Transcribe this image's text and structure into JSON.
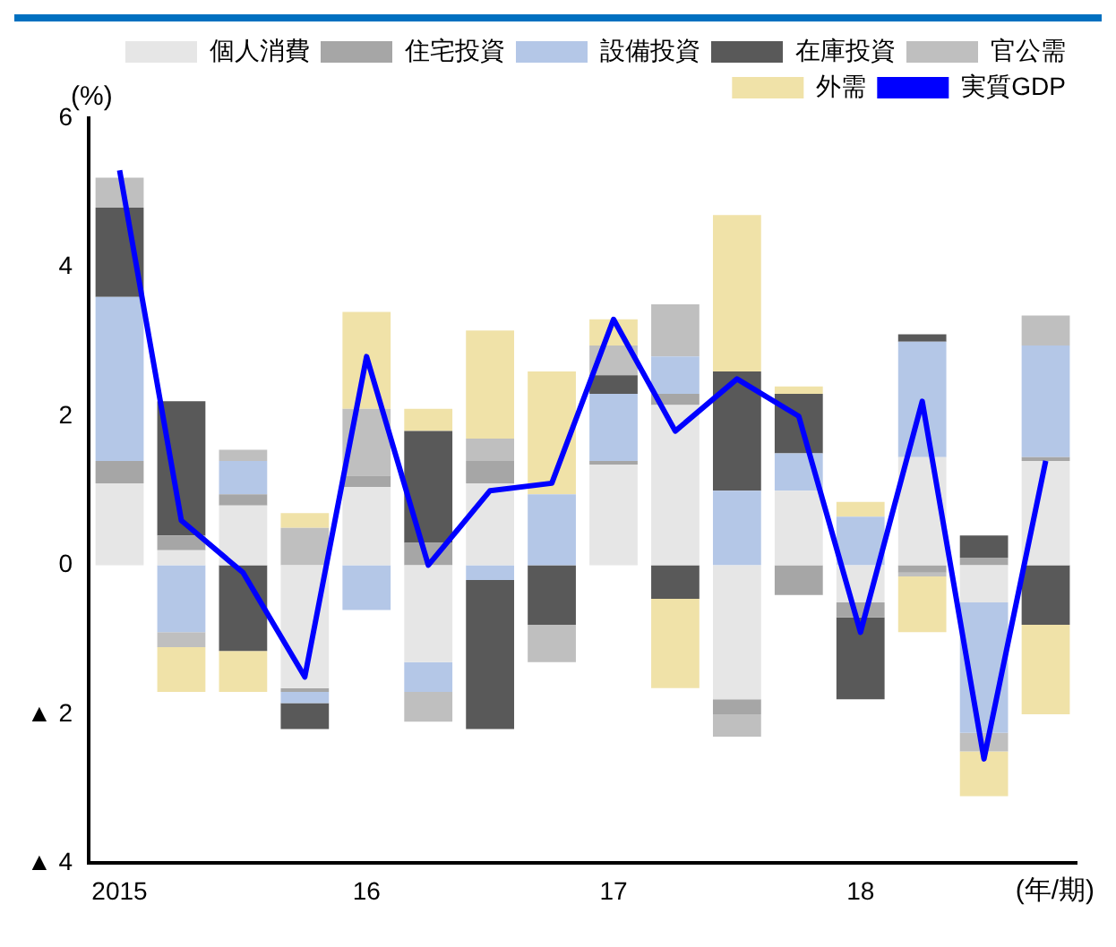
{
  "chart_data": {
    "type": "bar",
    "stacked": true,
    "ylabel": "(%)",
    "xlabel": "(年/期)",
    "categories": [
      "2015",
      null,
      null,
      null,
      "16",
      null,
      null,
      null,
      "17",
      null,
      null,
      null,
      "18",
      null,
      null,
      null
    ],
    "ylim": [
      -4,
      6
    ],
    "yticks": [
      {
        "value": -4,
        "label": "▲ 4"
      },
      {
        "value": -2,
        "label": "▲ 2"
      },
      0,
      2,
      4,
      6
    ],
    "legend": "top right",
    "marker": "none",
    "series": [
      {
        "name": "個人消費",
        "color": "#e6e6e6",
        "values": [
          1.1,
          0.2,
          0.8,
          -1.65,
          1.05,
          -1.3,
          1.1,
          0,
          1.35,
          2.15,
          -1.8,
          1.0,
          -0.5,
          1.45,
          -0.5,
          1.4
        ]
      },
      {
        "name": "住宅投資",
        "color": "#a6a6a6",
        "values": [
          0.3,
          0.2,
          0.15,
          -0.05,
          0.15,
          0.3,
          0.3,
          0,
          0.05,
          0.15,
          -0.2,
          -0.4,
          -0.2,
          -0.1,
          0.1,
          0.05
        ]
      },
      {
        "name": "設備投資",
        "color": "#b4c7e7",
        "values": [
          2.2,
          -0.9,
          0.45,
          -0.15,
          -0.6,
          -0.4,
          -0.2,
          0.95,
          0.9,
          0.5,
          1.0,
          0.5,
          0.65,
          1.55,
          -1.75,
          1.5
        ]
      },
      {
        "name": "在庫投資",
        "color": "#595959",
        "values": [
          1.2,
          1.8,
          -1.15,
          -0.35,
          0,
          1.5,
          -2.0,
          -0.8,
          0.25,
          -0.45,
          1.6,
          0.8,
          -1.1,
          0.1,
          0.3,
          -0.8
        ]
      },
      {
        "name": "官公需",
        "color": "#bfbfbf",
        "values": [
          0.4,
          -0.2,
          0.15,
          0.5,
          0.9,
          -0.4,
          0.3,
          -0.5,
          0.4,
          0.7,
          -0.3,
          0,
          0,
          -0.05,
          -0.25,
          0.4
        ]
      },
      {
        "name": "外需",
        "color": "#f0e2a8",
        "values": [
          0,
          -0.6,
          -0.55,
          0.2,
          1.3,
          0.3,
          1.45,
          1.65,
          0.35,
          -1.2,
          2.1,
          0.1,
          0.2,
          -0.75,
          -0.6,
          -1.2
        ]
      },
      {
        "name": "実質GDP",
        "type": "line",
        "color": "#0000ff",
        "values": [
          5.3,
          0.6,
          -0.1,
          -1.5,
          2.8,
          0.0,
          1.0,
          1.1,
          3.3,
          1.8,
          2.5,
          2.0,
          -0.9,
          2.2,
          -2.6,
          1.4
        ]
      }
    ]
  }
}
